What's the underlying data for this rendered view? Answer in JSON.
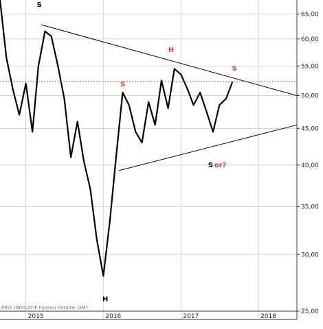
{
  "chart_data": {
    "type": "line",
    "title": "",
    "xlabel": "",
    "ylabel": "",
    "y_scale": "log",
    "ylim": [
      25,
      68
    ],
    "xlim": [
      "2014-09-01",
      "2018-07-01"
    ],
    "grid": true,
    "y_ticks": [
      65,
      60,
      55,
      50,
      45,
      40,
      35,
      30,
      25
    ],
    "y_tick_labels": [
      "65,00",
      "60,00",
      "55,00",
      "50,00",
      "45,00",
      "40,00",
      "35,00",
      "30,00",
      "25,00"
    ],
    "x_tick_labels": [
      {
        "label": "2015",
        "date": "2015-01-01"
      },
      {
        "label": "2016",
        "date": "2016-01-01"
      },
      {
        "label": "2017",
        "date": "2017-01-01"
      },
      {
        "label": "2018",
        "date": "2018-01-01"
      }
    ],
    "price_series": {
      "name": "",
      "points": [
        [
          "2014-09-01",
          68.0
        ],
        [
          "2014-10-01",
          56.5
        ],
        [
          "2014-11-01",
          51.0
        ],
        [
          "2014-12-01",
          47.0
        ],
        [
          "2015-01-01",
          52.0
        ],
        [
          "2015-02-01",
          44.5
        ],
        [
          "2015-03-01",
          55.0
        ],
        [
          "2015-04-01",
          61.5
        ],
        [
          "2015-05-01",
          60.5
        ],
        [
          "2015-06-01",
          55.0
        ],
        [
          "2015-07-01",
          49.5
        ],
        [
          "2015-08-01",
          41.0
        ],
        [
          "2015-09-01",
          46.0
        ],
        [
          "2015-10-01",
          40.5
        ],
        [
          "2015-11-01",
          37.0
        ],
        [
          "2015-12-01",
          31.5
        ],
        [
          "2016-01-01",
          28.0
        ],
        [
          "2016-02-01",
          33.5
        ],
        [
          "2016-03-01",
          41.0
        ],
        [
          "2016-04-01",
          50.5
        ],
        [
          "2016-05-01",
          48.5
        ],
        [
          "2016-06-01",
          44.5
        ],
        [
          "2016-07-01",
          43.0
        ],
        [
          "2016-08-01",
          49.0
        ],
        [
          "2016-09-01",
          45.5
        ],
        [
          "2016-10-01",
          52.5
        ],
        [
          "2016-11-01",
          48.0
        ],
        [
          "2016-12-01",
          54.5
        ],
        [
          "2017-01-01",
          53.5
        ],
        [
          "2017-02-01",
          51.0
        ],
        [
          "2017-03-01",
          48.5
        ],
        [
          "2017-04-01",
          50.5
        ],
        [
          "2017-05-01",
          47.5
        ],
        [
          "2017-06-01",
          44.5
        ],
        [
          "2017-07-01",
          48.5
        ],
        [
          "2017-08-01",
          49.5
        ],
        [
          "2017-09-01",
          52.3
        ]
      ]
    },
    "resistance_line": {
      "from": [
        "2015-03-15",
        62.8
      ],
      "to": [
        "2018-07-01",
        50.0
      ]
    },
    "support_line": {
      "from": [
        "2016-03-15",
        39.3
      ],
      "to": [
        "2018-07-01",
        45.5
      ]
    },
    "reference_level": {
      "value": 52.3,
      "color": "#e53935"
    },
    "annotations": [
      {
        "text": "S",
        "date": "2015-03-05",
        "value": 66.5,
        "color": "#000000"
      },
      {
        "text": "S",
        "date": "2016-04-01",
        "value": 51.5,
        "color": "#e53935"
      },
      {
        "text": "H",
        "date": "2016-11-15",
        "value": 57.5,
        "color": "#e53935"
      },
      {
        "text": "S",
        "date": "2017-09-10",
        "value": 54.2,
        "color": "#e53935"
      },
      {
        "text": "H",
        "date": "2016-01-10",
        "value": 25.8,
        "color": "#000000"
      },
      {
        "text": "S",
        "date": "2017-05-20",
        "value": 39.7,
        "color": "#000000"
      },
      {
        "text": "or?",
        "date": "2017-07-05",
        "value": 39.7,
        "color": "#e53935"
      }
    ],
    "footer_note": "PRIX INDICATIF   Fuseau horaire: GMT"
  }
}
